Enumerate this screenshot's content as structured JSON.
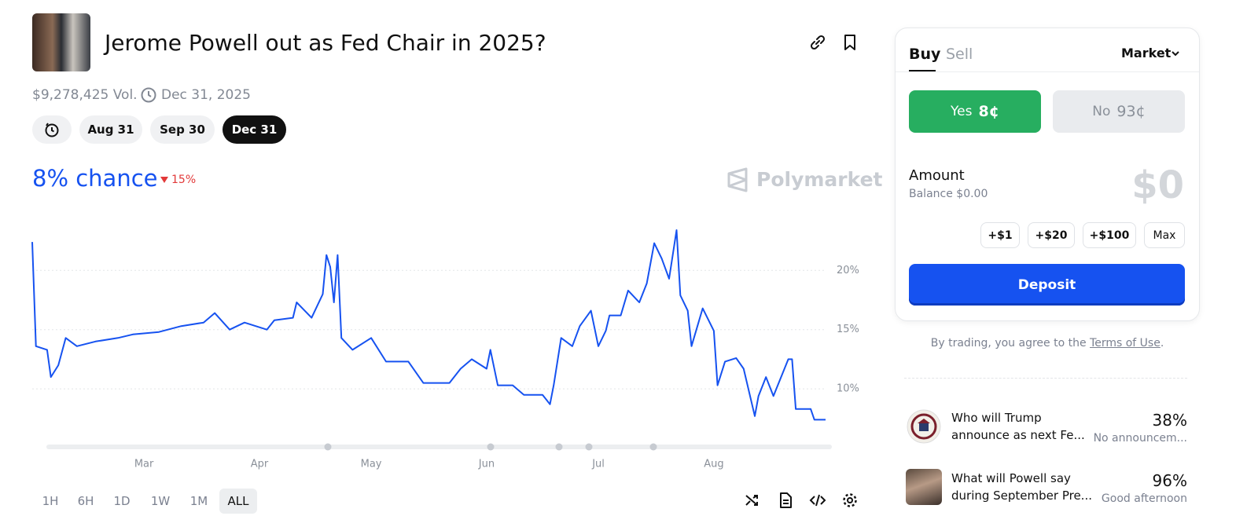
{
  "header": {
    "title": "Jerome Powell out as Fed Chair in 2025?",
    "volume": "$9,278,425 Vol.",
    "end_date": "Dec 31, 2025"
  },
  "date_tabs": [
    "Aug 31",
    "Sep 30",
    "Dec 31"
  ],
  "chance": "8% chance",
  "change": "15%",
  "brand": "Polymarket",
  "chart_data": {
    "type": "line",
    "color": "#1652f0",
    "x": [
      30,
      31,
      34,
      35,
      37,
      39,
      42,
      47,
      53,
      57,
      64,
      70,
      76,
      79,
      83,
      87,
      93,
      95,
      100,
      101,
      105,
      108,
      109,
      110,
      111,
      112,
      113,
      116,
      121,
      125,
      131,
      135,
      142,
      145,
      148,
      152,
      153,
      155,
      159,
      162,
      167,
      169,
      170,
      172,
      175,
      177,
      180,
      182,
      184,
      185,
      188,
      190,
      193,
      195,
      197,
      199,
      201,
      203,
      204,
      206,
      207,
      210,
      213,
      214,
      216,
      219,
      221,
      224,
      225,
      227,
      229,
      233,
      234,
      235,
      239,
      240,
      243
    ],
    "values": [
      22.4,
      13.6,
      13.3,
      11.0,
      12.0,
      14.3,
      13.6,
      14.0,
      14.3,
      14.6,
      14.8,
      15.3,
      15.6,
      16.4,
      15.0,
      15.6,
      15.0,
      15.8,
      16.0,
      17.3,
      16.0,
      18.0,
      21.3,
      20.3,
      17.3,
      21.3,
      14.3,
      13.3,
      14.3,
      12.3,
      12.3,
      10.5,
      10.5,
      11.7,
      12.5,
      11.7,
      13.3,
      10.3,
      10.3,
      9.5,
      9.5,
      8.7,
      10.3,
      14.3,
      13.6,
      15.3,
      16.6,
      13.6,
      14.9,
      16.2,
      16.2,
      18.3,
      17.3,
      18.9,
      22.3,
      21.0,
      19.3,
      23.4,
      17.9,
      16.6,
      13.6,
      16.8,
      14.9,
      10.3,
      12.3,
      12.6,
      11.7,
      7.7,
      9.4,
      11.0,
      9.4,
      12.5,
      12.5,
      8.3,
      8.3,
      7.4,
      7.4
    ],
    "xlim": [
      30,
      243
    ],
    "xticks": [
      {
        "value": 60,
        "label": "Mar"
      },
      {
        "value": 91,
        "label": "Apr"
      },
      {
        "value": 121,
        "label": "May"
      },
      {
        "value": 152,
        "label": "Jun"
      },
      {
        "value": 182,
        "label": "Jul"
      },
      {
        "value": 213,
        "label": "Aug"
      }
    ],
    "ylim": [
      5.7,
      23.6
    ],
    "yticks": [
      {
        "value": 10,
        "label": "10%"
      },
      {
        "value": 15,
        "label": "15%"
      },
      {
        "value": 20,
        "label": "20%"
      }
    ],
    "grid": true
  },
  "timeframes": [
    "1H",
    "6H",
    "1D",
    "1W",
    "1M",
    "ALL"
  ],
  "trade": {
    "tabs": [
      "Buy",
      "Sell"
    ],
    "order_type": "Market",
    "yes_label": "Yes",
    "yes_price": "8¢",
    "no_label": "No",
    "no_price": "93¢",
    "amount_label": "Amount",
    "balance": "Balance $0.00",
    "amount": "$0",
    "quick_add": [
      "+$1",
      "+$20",
      "+$100",
      "Max"
    ],
    "deposit": "Deposit",
    "terms_prefix": "By trading, you agree to the ",
    "terms_link": "Terms of Use",
    "terms_suffix": "."
  },
  "related": [
    {
      "title": "Who will Trump announce as next Fe...",
      "percent": "38%",
      "outcome": "No announcem..."
    },
    {
      "title": "What will Powell say during September Pre...",
      "percent": "96%",
      "outcome": "Good afternoon"
    }
  ]
}
